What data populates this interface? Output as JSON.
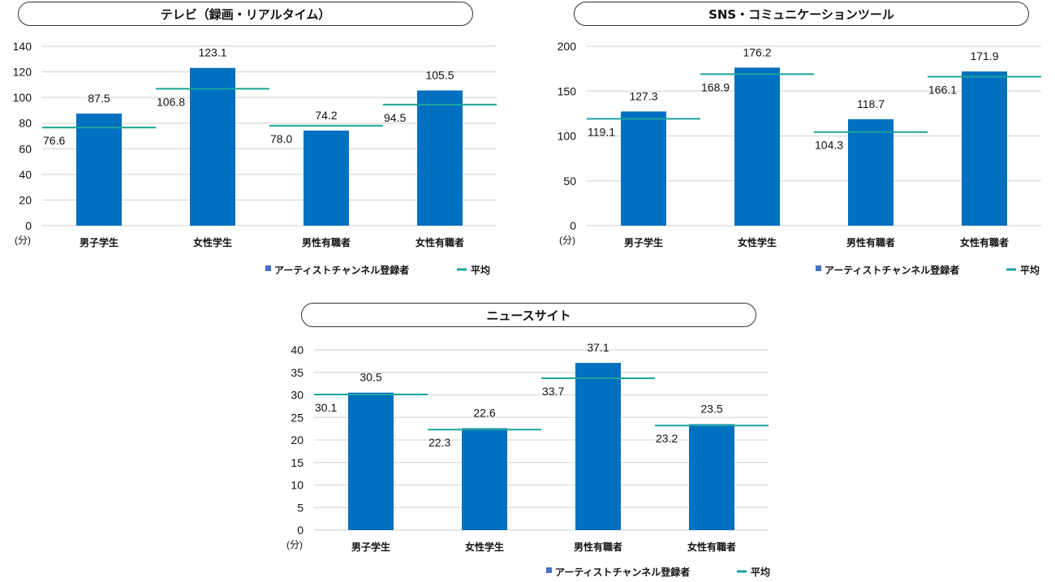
{
  "chart_data": [
    {
      "type": "bar",
      "title": "テレビ（録画・リアルタイム）",
      "categories": [
        "男子学生",
        "女性学生",
        "男性有職者",
        "女性有職者"
      ],
      "series": [
        {
          "name": "アーティストチャンネル登録者",
          "type": "bar",
          "values": [
            87.5,
            123.1,
            74.2,
            105.5
          ]
        },
        {
          "name": "平均",
          "type": "line-marker",
          "values": [
            76.6,
            106.8,
            78.0,
            94.5
          ]
        }
      ],
      "ylabel": "(分)",
      "ylim": [
        0,
        140
      ],
      "yticks": [
        0,
        20,
        40,
        60,
        80,
        100,
        120,
        140
      ],
      "value_labels": [
        [
          "87.5",
          "123.1",
          "74.2",
          "105.5"
        ],
        [
          "76.6",
          "106.8",
          "78.0",
          "94.5"
        ]
      ],
      "grid": true,
      "legend": "bottom-right",
      "colors": {
        "bar": "#0070C0",
        "avg": "#1AA59B"
      }
    },
    {
      "type": "bar",
      "title": "SNS・コミュニケーションツール",
      "categories": [
        "男子学生",
        "女性学生",
        "男性有職者",
        "女性有職者"
      ],
      "series": [
        {
          "name": "アーティストチャンネル登録者",
          "type": "bar",
          "values": [
            127.3,
            176.2,
            118.7,
            171.9
          ]
        },
        {
          "name": "平均",
          "type": "line-marker",
          "values": [
            119.1,
            168.9,
            104.3,
            166.1
          ]
        }
      ],
      "ylabel": "(分)",
      "ylim": [
        0,
        200
      ],
      "yticks": [
        0,
        50,
        100,
        150,
        200
      ],
      "value_labels": [
        [
          "127.3",
          "176.2",
          "118.7",
          "171.9"
        ],
        [
          "119.1",
          "168.9",
          "104.3",
          "166.1"
        ]
      ],
      "grid": true,
      "legend": "bottom-right",
      "colors": {
        "bar": "#0070C0",
        "avg": "#1AA59B"
      }
    },
    {
      "type": "bar",
      "title": "ニュースサイト",
      "categories": [
        "男子学生",
        "女性学生",
        "男性有職者",
        "女性有職者"
      ],
      "series": [
        {
          "name": "アーティストチャンネル登録者",
          "type": "bar",
          "values": [
            30.5,
            22.6,
            37.1,
            23.5
          ]
        },
        {
          "name": "平均",
          "type": "line-marker",
          "values": [
            30.1,
            22.3,
            33.7,
            23.2
          ]
        }
      ],
      "ylabel": "(分)",
      "ylim": [
        0,
        40
      ],
      "yticks": [
        0,
        5,
        10,
        15,
        20,
        25,
        30,
        35,
        40
      ],
      "value_labels": [
        [
          "30.5",
          "22.6",
          "37.1",
          "23.5"
        ],
        [
          "30.1",
          "22.3",
          "33.7",
          "23.2"
        ]
      ],
      "grid": true,
      "legend": "bottom-right",
      "colors": {
        "bar": "#0070C0",
        "avg": "#1AA59B"
      }
    }
  ]
}
